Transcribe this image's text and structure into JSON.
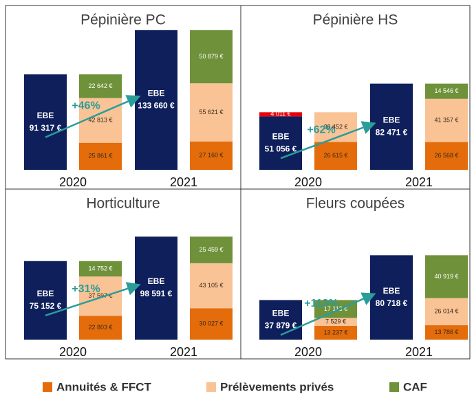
{
  "ebe_label": "EBE",
  "ebe_color": "#0e1f5b",
  "negative_color": "#e8000b",
  "arrow_color": "#2a9d9a",
  "legend": [
    {
      "name": "Annuités & FFCT",
      "color": "#e46c0a",
      "label_color": "#3a2a1a"
    },
    {
      "name": "Prélèvements privés",
      "color": "#f9c396",
      "label_color": "#3a2a1a"
    },
    {
      "name": "CAF",
      "color": "#6e913a",
      "label_color": "#ffffff"
    }
  ],
  "chart_data": [
    {
      "type": "bar",
      "title": "Pépinière PC",
      "categories": [
        "2020",
        "2021"
      ],
      "ylim": [
        0,
        150000
      ],
      "annotation": "+46%",
      "ebe": {
        "values": [
          91317,
          133660
        ],
        "value_labels": [
          "91 317 €",
          "133 660 €"
        ]
      },
      "series": [
        {
          "values": [
            25861,
            27160
          ],
          "value_labels": [
            "25 861 €",
            "27 160 €"
          ]
        },
        {
          "values": [
            42813,
            55621
          ],
          "value_labels": [
            "42 813 €",
            "55 621 €"
          ]
        },
        {
          "values": [
            22642,
            50879
          ],
          "value_labels": [
            "22 642 €",
            "50 879 €"
          ]
        }
      ]
    },
    {
      "type": "bar",
      "title": "Pépinière HS",
      "categories": [
        "2020",
        "2021"
      ],
      "ylim": [
        0,
        150000
      ],
      "annotation": "+62%",
      "ebe": {
        "values": [
          51056,
          82471
        ],
        "value_labels": [
          "51 056 €",
          "82 471 €"
        ]
      },
      "series": [
        {
          "values": [
            26615,
            26568
          ],
          "value_labels": [
            "26 615 €",
            "26 568 €"
          ]
        },
        {
          "values": [
            28452,
            41357
          ],
          "value_labels": [
            "28 452 €",
            "41 357 €"
          ]
        },
        {
          "values": [
            -4011,
            14546
          ],
          "value_labels": [
            "4 011 €",
            "14 546 €"
          ]
        }
      ]
    },
    {
      "type": "bar",
      "title": "Horticulture",
      "categories": [
        "2020",
        "2021"
      ],
      "ylim": [
        0,
        150000
      ],
      "annotation": "+31%",
      "ebe": {
        "values": [
          75152,
          98591
        ],
        "value_labels": [
          "75 152 €",
          "98 591 €"
        ]
      },
      "series": [
        {
          "values": [
            22803,
            30027
          ],
          "value_labels": [
            "22 803 €",
            "30 027 €"
          ]
        },
        {
          "values": [
            37597,
            43105
          ],
          "value_labels": [
            "37 597 €",
            "43 105 €"
          ]
        },
        {
          "values": [
            14752,
            25459
          ],
          "value_labels": [
            "14 752 €",
            "25 459 €"
          ]
        }
      ]
    },
    {
      "type": "bar",
      "title": "Fleurs coupées",
      "categories": [
        "2020",
        "2021"
      ],
      "ylim": [
        0,
        150000
      ],
      "annotation": "+113%",
      "ebe": {
        "values": [
          37879,
          80718
        ],
        "value_labels": [
          "37 879 €",
          "80 718 €"
        ]
      },
      "series": [
        {
          "values": [
            13237,
            13786
          ],
          "value_labels": [
            "13 237 €",
            "13 786 €"
          ]
        },
        {
          "values": [
            7529,
            26014
          ],
          "value_labels": [
            "7 529 €",
            "26 014 €"
          ]
        },
        {
          "values": [
            17113,
            40919
          ],
          "value_labels": [
            "17 113 €",
            "40 919 €"
          ]
        }
      ]
    }
  ]
}
